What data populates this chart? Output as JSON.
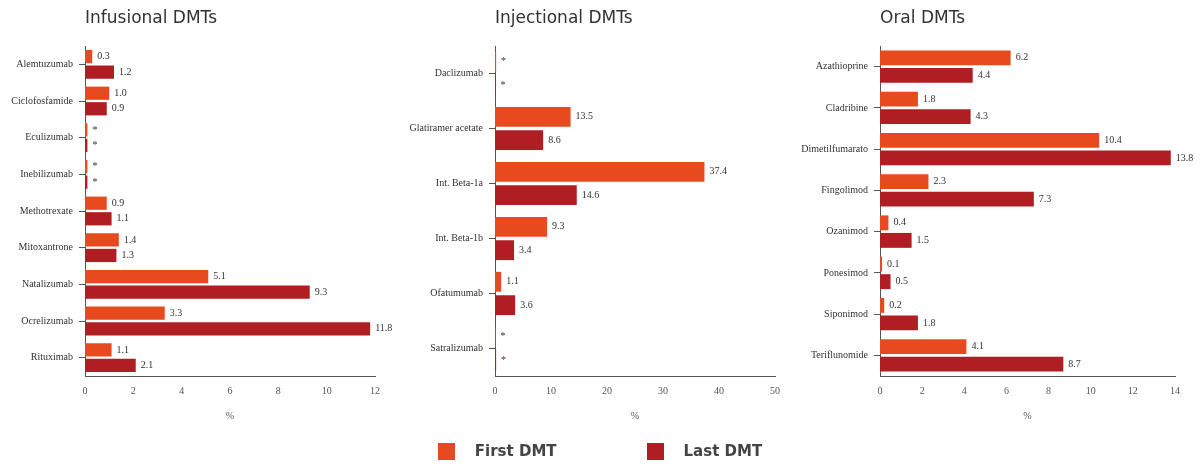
{
  "chart_data": [
    {
      "type": "bar",
      "orientation": "horizontal",
      "title": "Infusional DMTs",
      "xlabel": "%",
      "legend": "bottom",
      "categories": [
        "Alemtuzumab",
        "Ciclofosfamide",
        "Eculizumab",
        "Inebilizumab",
        "Methotrexate",
        "Mitoxantrone",
        "Natalizumab",
        "Ocrelizumab",
        "Rituximab"
      ],
      "series": [
        {
          "name": "First DMT",
          "color": "#e84a1f",
          "values": [
            0.3,
            1.0,
            0.1,
            0.1,
            0.9,
            1.4,
            5.1,
            3.3,
            1.1
          ],
          "value_labels": [
            "0.3",
            "1.0",
            "*",
            "*",
            "0.9",
            "1.4",
            "5.1",
            "3.3",
            "1.1"
          ]
        },
        {
          "name": "Last DMT",
          "color": "#b01e23",
          "values": [
            1.2,
            0.9,
            0.1,
            0.1,
            1.1,
            1.3,
            9.3,
            11.8,
            2.1
          ],
          "value_labels": [
            "1.2",
            "0.9",
            "*",
            "*",
            "1.1",
            "1.3",
            "9.3",
            "11.8",
            "2.1"
          ]
        }
      ],
      "xlim": [
        0,
        12
      ],
      "xticks": [
        0,
        2,
        4,
        6,
        8,
        10,
        12
      ]
    },
    {
      "type": "bar",
      "orientation": "horizontal",
      "title": "Injectional DMTs",
      "xlabel": "%",
      "categories": [
        "Daclizumab",
        "Glatiramer acetate",
        "Int. Beta-1a",
        "Int. Beta-1b",
        "Ofatumumab",
        "Satralizumab"
      ],
      "series": [
        {
          "color": "#e84a1f",
          "values": [
            0.2,
            13.5,
            37.4,
            9.3,
            1.1,
            0.1
          ],
          "value_labels": [
            "*",
            "13.5",
            "37.4",
            "9.3",
            "1.1",
            "*"
          ]
        },
        {
          "color": "#b01e23",
          "values": [
            0.1,
            8.6,
            14.6,
            3.4,
            3.6,
            0.2
          ],
          "value_labels": [
            "*",
            "8.6",
            "14.6",
            "3.4",
            "3.6",
            "*"
          ]
        }
      ],
      "xlim": [
        0,
        50
      ],
      "xticks": [
        0,
        10,
        20,
        30,
        40,
        50
      ]
    },
    {
      "type": "bar",
      "orientation": "horizontal",
      "title": "Oral DMTs",
      "xlabel": "%",
      "categories": [
        "Azathioprine",
        "Cladribine",
        "Dimetilfumarato",
        "Fingolimod",
        "Ozanimod",
        "Ponesimod",
        "Siponimod",
        "Teriflunomide"
      ],
      "series": [
        {
          "color": "#e84a1f",
          "values": [
            6.2,
            1.8,
            10.4,
            2.3,
            0.4,
            0.1,
            0.2,
            4.1
          ],
          "value_labels": [
            "6.2",
            "1.8",
            "10.4",
            "2.3",
            "0.4",
            "0.1",
            "0.2",
            "4.1"
          ]
        },
        {
          "color": "#b01e23",
          "values": [
            4.4,
            4.3,
            13.8,
            7.3,
            1.5,
            0.5,
            1.8,
            8.7
          ],
          "value_labels": [
            "4.4",
            "4.3",
            "13.8",
            "7.3",
            "1.5",
            "0.5",
            "1.8",
            "8.7"
          ]
        }
      ],
      "xlim": [
        0,
        14
      ],
      "xticks": [
        0,
        2,
        4,
        6,
        8,
        10,
        12,
        14
      ]
    }
  ]
}
